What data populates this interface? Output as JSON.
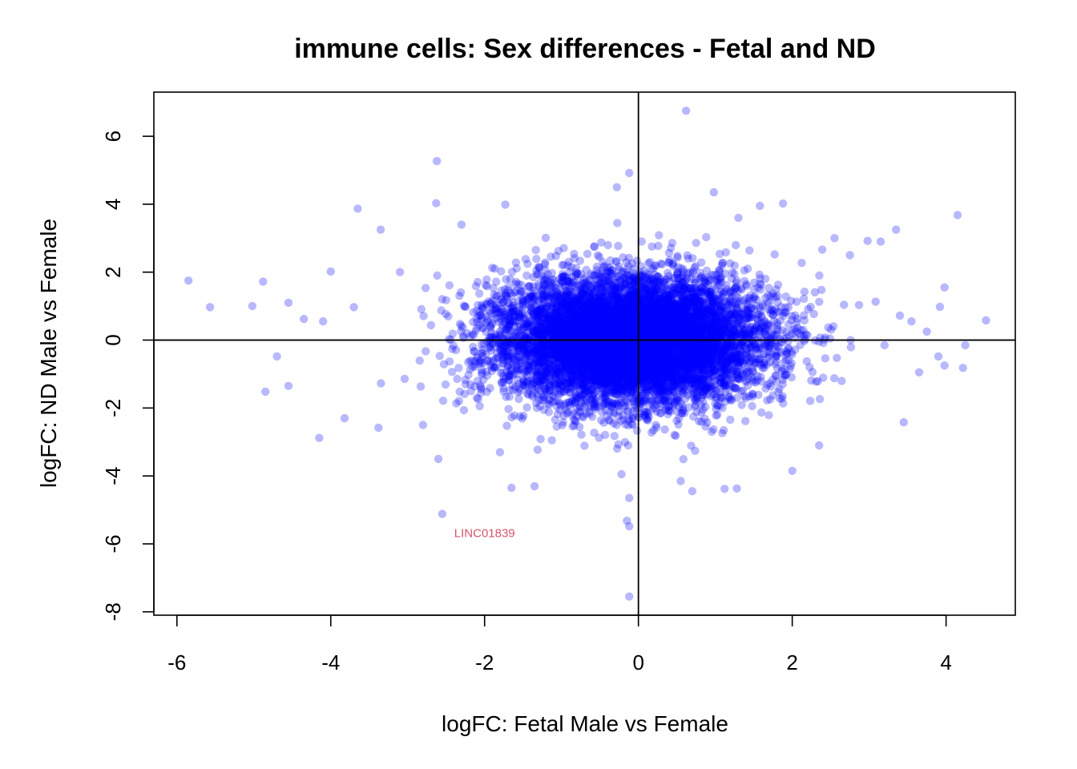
{
  "chart_data": {
    "type": "scatter",
    "title": "immune cells: Sex differences - Fetal and ND",
    "xlabel": "logFC: Fetal Male vs Female",
    "ylabel": "logFC: ND Male vs Female",
    "xlim": [
      -6.3,
      4.9
    ],
    "ylim": [
      -8.1,
      7.3
    ],
    "x_ticks": [
      -6,
      -4,
      -2,
      0,
      2,
      4
    ],
    "x_tick_labels": [
      "-6",
      "-4",
      "-2",
      "0",
      "2",
      "4"
    ],
    "y_ticks": [
      -8,
      -6,
      -4,
      -2,
      0,
      2,
      4,
      6
    ],
    "y_tick_labels": [
      "-8",
      "-6",
      "-4",
      "-2",
      "0",
      "2",
      "4",
      "6"
    ],
    "reference_lines": {
      "x": 0,
      "y": 0
    },
    "point_color": "#0000ff",
    "point_opacity": 0.28,
    "annotation_color": "#d4556c",
    "bulk_cloud": {
      "n_points": 9000,
      "x_mean": -0.1,
      "x_sd": 0.85,
      "y_mean": 0.0,
      "y_sd": 0.95,
      "seed": 42
    },
    "outliers": [
      {
        "x": 0.62,
        "y": 6.75
      },
      {
        "x": -2.62,
        "y": 5.27
      },
      {
        "x": -0.12,
        "y": 4.92
      },
      {
        "x": -0.28,
        "y": 4.5
      },
      {
        "x": 0.98,
        "y": 4.35
      },
      {
        "x": 1.88,
        "y": 4.02
      },
      {
        "x": -2.63,
        "y": 4.03
      },
      {
        "x": -1.73,
        "y": 3.99
      },
      {
        "x": -3.65,
        "y": 3.87
      },
      {
        "x": 4.15,
        "y": 3.68
      },
      {
        "x": 3.35,
        "y": 3.25
      },
      {
        "x": 2.98,
        "y": 2.92
      },
      {
        "x": 3.15,
        "y": 2.9
      },
      {
        "x": -3.35,
        "y": 3.25
      },
      {
        "x": -2.3,
        "y": 3.4
      },
      {
        "x": -5.85,
        "y": 1.75
      },
      {
        "x": -4.88,
        "y": 1.72
      },
      {
        "x": -5.57,
        "y": 0.97
      },
      {
        "x": -5.02,
        "y": 1.0
      },
      {
        "x": -4.0,
        "y": 2.02
      },
      {
        "x": -4.55,
        "y": 1.1
      },
      {
        "x": -4.1,
        "y": 0.55
      },
      {
        "x": -4.35,
        "y": 0.62
      },
      {
        "x": -4.7,
        "y": -0.48
      },
      {
        "x": -4.85,
        "y": -1.52
      },
      {
        "x": -4.55,
        "y": -1.35
      },
      {
        "x": -4.15,
        "y": -2.88
      },
      {
        "x": -3.82,
        "y": -2.3
      },
      {
        "x": -3.38,
        "y": -2.58
      },
      {
        "x": -2.55,
        "y": -5.12
      },
      {
        "x": -2.6,
        "y": -3.5
      },
      {
        "x": -1.35,
        "y": -4.3
      },
      {
        "x": -1.65,
        "y": -4.35
      },
      {
        "x": -0.12,
        "y": -4.65
      },
      {
        "x": -0.15,
        "y": -5.32
      },
      {
        "x": -0.12,
        "y": -5.48
      },
      {
        "x": -0.12,
        "y": -7.55
      },
      {
        "x": 0.7,
        "y": -4.45
      },
      {
        "x": 1.12,
        "y": -4.38
      },
      {
        "x": 1.28,
        "y": -4.37
      },
      {
        "x": 2.0,
        "y": -3.85
      },
      {
        "x": 4.52,
        "y": 0.58
      },
      {
        "x": 4.25,
        "y": -0.15
      },
      {
        "x": 4.22,
        "y": -0.82
      },
      {
        "x": 3.98,
        "y": -0.75
      },
      {
        "x": 3.98,
        "y": 1.55
      },
      {
        "x": 3.75,
        "y": 0.25
      },
      {
        "x": 3.45,
        "y": -2.42
      },
      {
        "x": 3.55,
        "y": 0.55
      },
      {
        "x": 3.92,
        "y": 0.98
      },
      {
        "x": 3.65,
        "y": -0.95
      },
      {
        "x": 3.2,
        "y": -0.15
      },
      {
        "x": 3.9,
        "y": -0.48
      },
      {
        "x": 3.4,
        "y": 0.72
      },
      {
        "x": 2.75,
        "y": 2.5
      },
      {
        "x": 2.55,
        "y": 3.0
      },
      {
        "x": -3.1,
        "y": 2.0
      },
      {
        "x": -3.7,
        "y": 0.97
      },
      {
        "x": -2.8,
        "y": -2.5
      },
      {
        "x": 1.58,
        "y": 3.95
      },
      {
        "x": 1.3,
        "y": 3.6
      },
      {
        "x": 2.35,
        "y": -3.1
      },
      {
        "x": -1.8,
        "y": -3.3
      },
      {
        "x": 0.55,
        "y": -4.15
      },
      {
        "x": -0.22,
        "y": -3.95
      }
    ],
    "annotations": [
      {
        "label": "LINC01839",
        "x": -2.0,
        "y": -5.68
      }
    ]
  }
}
